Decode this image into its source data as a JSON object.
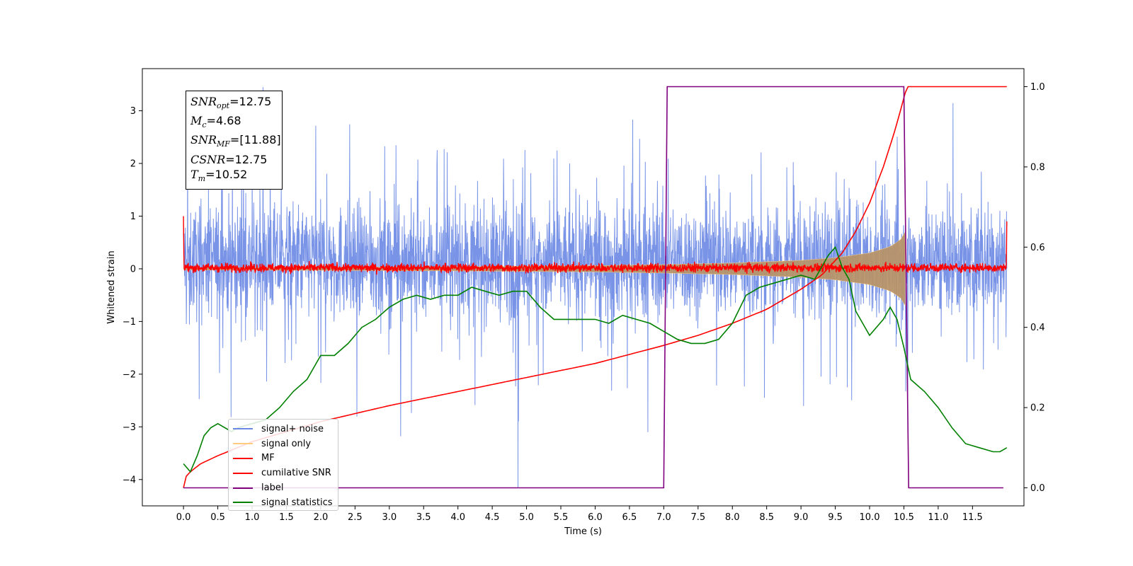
{
  "chart_data": {
    "type": "line",
    "xlabel": "Time (s)",
    "ylabel": "Whitened strain",
    "xlim": [
      -0.6,
      12.25
    ],
    "ylim": [
      -4.5,
      3.8
    ],
    "y2lim": [
      -0.045,
      1.045
    ],
    "xticks": [
      "0.0",
      "0.5",
      "1.0",
      "1.5",
      "2.0",
      "2.5",
      "3.0",
      "3.5",
      "4.0",
      "4.5",
      "5.0",
      "5.5",
      "6.0",
      "6.5",
      "7.0",
      "7.5",
      "8.0",
      "8.5",
      "9.0",
      "9.5",
      "10.0",
      "10.5",
      "11.0",
      "11.5"
    ],
    "yticks": [
      "3",
      "2",
      "1",
      "0",
      "−1",
      "−2",
      "−3",
      "−4"
    ],
    "y2ticks": [
      "1.0",
      "0.8",
      "0.6",
      "0.4",
      "0.2",
      "0.0"
    ],
    "grid": false,
    "legend_position": "lower-left",
    "annotation": {
      "snr_opt": "=12.75",
      "mc": "=4.68",
      "snr_mf": "=[11.88]",
      "csnr": "=12.75",
      "tm": "=10.52"
    },
    "series": [
      {
        "name": "signal+ noise",
        "color": "#6a88e4",
        "axis": "left",
        "kind": "noise",
        "time_range": [
          0.0,
          12.0
        ],
        "envelope_typical": [
          -1.6,
          1.8
        ],
        "extremes": [
          -4.15,
          3.45
        ]
      },
      {
        "name": "signal only",
        "color": "#ffcc80",
        "fill_color": "#b8956a",
        "axis": "left",
        "kind": "chirp",
        "time_range": [
          0.0,
          10.52
        ],
        "envelope_x": [
          0.0,
          2.0,
          4.0,
          6.0,
          7.0,
          8.0,
          9.0,
          9.5,
          10.0,
          10.3,
          10.45,
          10.52
        ],
        "envelope_y": [
          0.02,
          0.03,
          0.04,
          0.06,
          0.08,
          0.11,
          0.16,
          0.21,
          0.3,
          0.42,
          0.55,
          0.7
        ]
      },
      {
        "name": "MF",
        "color": "#ff0000",
        "axis": "left",
        "kind": "noise",
        "time_range": [
          0.0,
          12.0
        ],
        "envelope_typical": [
          -0.12,
          0.15
        ],
        "edges": [
          1.0,
          0.9
        ]
      },
      {
        "name": "cumilative SNR",
        "color": "#ff0000",
        "axis": "right",
        "x": [
          0.0,
          0.02,
          0.1,
          0.25,
          0.5,
          1.0,
          1.5,
          2.0,
          3.0,
          4.0,
          5.0,
          6.0,
          7.0,
          7.5,
          8.0,
          8.5,
          9.0,
          9.3,
          9.6,
          9.8,
          10.0,
          10.2,
          10.35,
          10.45,
          10.52,
          10.55,
          12.0
        ],
        "values": [
          0.0,
          0.025,
          0.04,
          0.06,
          0.08,
          0.115,
          0.14,
          0.165,
          0.205,
          0.24,
          0.275,
          0.31,
          0.355,
          0.38,
          0.41,
          0.445,
          0.495,
          0.53,
          0.585,
          0.64,
          0.71,
          0.8,
          0.88,
          0.94,
          0.985,
          1.0,
          1.0
        ]
      },
      {
        "name": "label",
        "color": "#800080",
        "axis": "right",
        "x": [
          0.0,
          7.0,
          7.05,
          10.5,
          10.57,
          11.95
        ],
        "values": [
          0.0,
          0.0,
          1.0,
          1.0,
          0.0,
          0.0
        ]
      },
      {
        "name": "signal statistics",
        "color": "#008000",
        "axis": "right",
        "x": [
          0.0,
          0.1,
          0.2,
          0.3,
          0.4,
          0.5,
          0.6,
          0.7,
          0.8,
          1.0,
          1.2,
          1.4,
          1.6,
          1.8,
          2.0,
          2.2,
          2.4,
          2.6,
          2.8,
          3.0,
          3.2,
          3.4,
          3.6,
          3.8,
          4.0,
          4.2,
          4.4,
          4.6,
          4.8,
          5.0,
          5.2,
          5.4,
          5.6,
          5.8,
          6.0,
          6.2,
          6.4,
          6.6,
          6.8,
          7.0,
          7.2,
          7.4,
          7.6,
          7.8,
          8.0,
          8.2,
          8.4,
          8.6,
          8.8,
          9.0,
          9.2,
          9.4,
          9.5,
          9.6,
          9.7,
          9.8,
          10.0,
          10.2,
          10.3,
          10.4,
          10.5,
          10.6,
          10.8,
          11.0,
          11.2,
          11.4,
          11.6,
          11.8,
          11.9,
          12.0
        ],
        "values": [
          0.06,
          0.04,
          0.08,
          0.13,
          0.15,
          0.16,
          0.15,
          0.14,
          0.15,
          0.16,
          0.17,
          0.2,
          0.24,
          0.27,
          0.33,
          0.33,
          0.36,
          0.4,
          0.42,
          0.45,
          0.47,
          0.48,
          0.47,
          0.48,
          0.48,
          0.5,
          0.49,
          0.48,
          0.49,
          0.49,
          0.45,
          0.42,
          0.42,
          0.42,
          0.42,
          0.41,
          0.43,
          0.42,
          0.41,
          0.39,
          0.37,
          0.36,
          0.36,
          0.37,
          0.41,
          0.48,
          0.5,
          0.51,
          0.52,
          0.53,
          0.52,
          0.58,
          0.6,
          0.55,
          0.52,
          0.44,
          0.38,
          0.42,
          0.45,
          0.42,
          0.35,
          0.27,
          0.24,
          0.2,
          0.15,
          0.11,
          0.1,
          0.09,
          0.09,
          0.1
        ]
      }
    ]
  }
}
